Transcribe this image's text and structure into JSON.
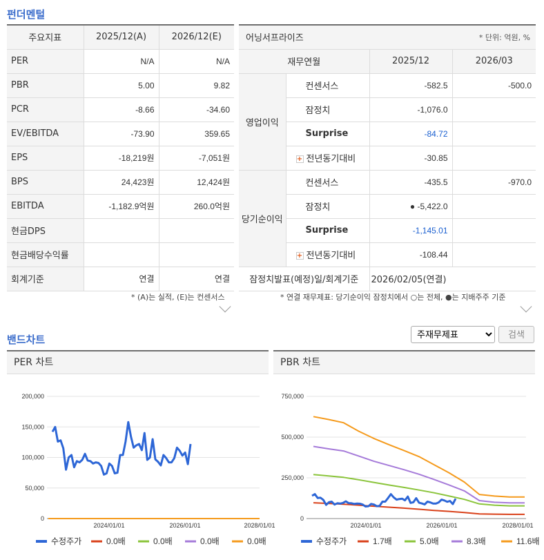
{
  "fundamentals": {
    "title": "펀더멘털",
    "headers": [
      "주요지표",
      "2025/12(A)",
      "2026/12(E)"
    ],
    "rows": [
      {
        "label": "PER",
        "a": "N/A",
        "e": "N/A"
      },
      {
        "label": "PBR",
        "a": "5.00",
        "e": "9.82"
      },
      {
        "label": "PCR",
        "a": "-8.66",
        "e": "-34.60"
      },
      {
        "label": "EV/EBITDA",
        "a": "-73.90",
        "e": "359.65"
      },
      {
        "label": "EPS",
        "a": "-18,219원",
        "e": "-7,051원"
      },
      {
        "label": "BPS",
        "a": "24,423원",
        "e": "12,424원"
      },
      {
        "label": "EBITDA",
        "a": "-1,182.9억원",
        "e": "260.0억원"
      },
      {
        "label": "현금DPS",
        "a": "",
        "e": ""
      },
      {
        "label": "현금배당수익률",
        "a": "",
        "e": ""
      },
      {
        "label": "회계기준",
        "a": "연결",
        "e": "연결"
      }
    ],
    "note": "* (A)는 실적, (E)는 컨센서스"
  },
  "earnings": {
    "title": "어닝서프라이즈",
    "unit": "* 단위: 억원, %",
    "headers": [
      "재무연월",
      "2025/12",
      "2026/03"
    ],
    "groups": [
      {
        "name": "영업이익",
        "rows": [
          {
            "label": "컨센서스",
            "v1": "-582.5",
            "v2": "-500.0"
          },
          {
            "label": "잠정치",
            "v1": "-1,076.0",
            "v2": ""
          },
          {
            "label": "Surprise",
            "v1": "-84.72",
            "v2": ""
          },
          {
            "label": "전년동기대비",
            "v1": "-30.85",
            "v2": ""
          }
        ]
      },
      {
        "name": "당기순이익",
        "rows": [
          {
            "label": "컨센서스",
            "v1": "-435.5",
            "v2": "-970.0"
          },
          {
            "label": "잠정치",
            "v1": "● -5,422.0",
            "v2": ""
          },
          {
            "label": "Surprise",
            "v1": "-1,145.01",
            "v2": ""
          },
          {
            "label": "전년동기대비",
            "v1": "-108.44",
            "v2": ""
          }
        ]
      }
    ],
    "release_label": "잠정치발표(예정)일/회계기준",
    "release_value": "2026/02/05(연결)",
    "note": "* 연결 재무제표: 당기순이익 잠정치에서 ○는 전체, ●는 지배주주 기준"
  },
  "band": {
    "title": "밴드차트",
    "select_value": "주재무제표",
    "search_label": "검색"
  },
  "chart_data": [
    {
      "type": "line",
      "title": "PER 차트",
      "ylim": [
        0,
        200000
      ],
      "yticks": [
        "200,000",
        "150,000",
        "100,000",
        "50,000",
        "0"
      ],
      "ytick_values": [
        200000,
        150000,
        100000,
        50000,
        0
      ],
      "xticks": [
        "2024/01/01",
        "2026/01/01",
        "2028/01/01"
      ],
      "series": [
        {
          "name": "수정주가",
          "color": "#2d66d6",
          "values": [
            142000,
            150000,
            126000,
            128000,
            115000,
            80000,
            100000,
            104000,
            84000,
            94000,
            92000,
            96000,
            106000,
            95000,
            94000,
            90000,
            92000,
            91000,
            86000,
            72000,
            74000,
            90000,
            86000,
            74000,
            75000,
            104000,
            104000,
            126000,
            158000,
            134000,
            116000,
            120000,
            122000,
            112000,
            140000,
            96000,
            100000,
            130000,
            97000,
            93000,
            87000,
            104000,
            99000,
            92000,
            92000,
            99000,
            116000,
            111000,
            103000,
            108000,
            89000,
            122000
          ]
        },
        {
          "name": "0.0배",
          "color": "#d94019",
          "values": [
            0,
            0
          ]
        },
        {
          "name": "0.0배",
          "color": "#8ac43a",
          "values": [
            0,
            0
          ]
        },
        {
          "name": "0.0배",
          "color": "#a57ad9",
          "values": [
            0,
            0
          ]
        },
        {
          "name": "0.0배",
          "color": "#f59a1b",
          "values": [
            0,
            0
          ]
        }
      ]
    },
    {
      "type": "line",
      "title": "PBR 차트",
      "ylim": [
        0,
        750000
      ],
      "yticks": [
        "750,000",
        "500,000",
        "250,000",
        "0"
      ],
      "ytick_values": [
        750000,
        500000,
        250000,
        0
      ],
      "xticks": [
        "2024/01/01",
        "2026/01/01",
        "2028/01/01"
      ],
      "series": [
        {
          "name": "수정주가",
          "color": "#2d66d6",
          "values": [
            140000,
            150000,
            126000,
            128000,
            115000,
            84000,
            100000,
            104000,
            86000,
            94000,
            92000,
            96000,
            106000,
            95000,
            94000,
            90000,
            92000,
            91000,
            86000,
            74000,
            76000,
            90000,
            86000,
            76000,
            78000,
            104000,
            104000,
            126000,
            150000,
            130000,
            116000,
            120000,
            122000,
            112000,
            135000,
            96000,
            100000,
            125000,
            97000,
            93000,
            87000,
            104000,
            99000,
            92000,
            92000,
            99000,
            116000,
            111000,
            103000,
            108000,
            89000,
            122000
          ]
        },
        {
          "name": "1.7배",
          "color": "#d94019",
          "values": [
            97000,
            93000,
            88000,
            82000,
            76000,
            70000,
            64000,
            57000,
            50000,
            44000,
            37000,
            29000,
            27000,
            26000,
            26000
          ]
        },
        {
          "name": "5.0배",
          "color": "#8ac43a",
          "values": [
            270000,
            262000,
            253000,
            238000,
            222000,
            206000,
            191000,
            175000,
            158000,
            138000,
            118000,
            90000,
            82000,
            78000,
            78000
          ]
        },
        {
          "name": "8.3배",
          "color": "#a57ad9",
          "values": [
            443000,
            428000,
            415000,
            384000,
            352000,
            326000,
            300000,
            272000,
            240000,
            206000,
            170000,
            110000,
            100000,
            96000,
            96000
          ]
        },
        {
          "name": "11.6배",
          "color": "#f59a1b",
          "values": [
            626000,
            608000,
            588000,
            536000,
            492000,
            454000,
            418000,
            380000,
            330000,
            280000,
            224000,
            148000,
            138000,
            132000,
            132000
          ]
        }
      ]
    }
  ]
}
